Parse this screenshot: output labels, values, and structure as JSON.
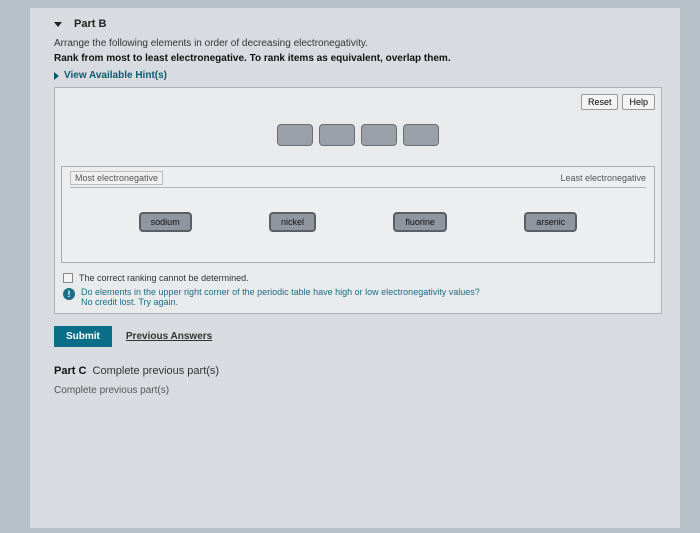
{
  "part": {
    "label": "Part B",
    "instruction": "Arrange the following elements in order of decreasing electronegativity.",
    "rank_line": "Rank from most to least electronegative. To rank items as equivalent, overlap them.",
    "hints_label": "View Available Hint(s)"
  },
  "toolbar": {
    "reset": "Reset",
    "help": "Help"
  },
  "ranking": {
    "left_label": "Most electronegative",
    "right_label": "Least electronegative",
    "slot_count": 4,
    "items": [
      "sodium",
      "nickel",
      "fluorine",
      "arsenic"
    ]
  },
  "cannot_determine": "The correct ranking cannot be determined.",
  "feedback": {
    "line1": "Do elements in the upper right corner of the periodic table have high or low electronegativity values?",
    "line2": "No credit lost. Try again."
  },
  "actions": {
    "submit": "Submit",
    "previous": "Previous Answers"
  },
  "part_c": {
    "label": "Part C",
    "status": "Complete previous part(s)"
  },
  "part_d": {
    "text": "Complete previous part(s)"
  },
  "colors": {
    "page_bg": "#d8dce0",
    "accent": "#0a6e88",
    "chip_bg": "#8f96a0",
    "slot_bg": "#9aa0a8"
  }
}
